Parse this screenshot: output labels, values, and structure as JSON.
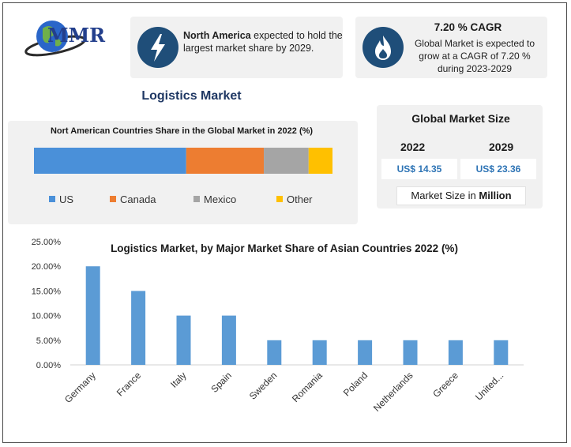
{
  "logo": {
    "text": "MMR"
  },
  "cards": {
    "north_america": {
      "bold": "North America",
      "text": " expected to hold the largest market share by 2029."
    },
    "cagr": {
      "title": "7.20 % CAGR",
      "text": "Global Market is expected to grow at a CAGR of 7.20 % during 2023-2029"
    }
  },
  "main_title": "Logistics Market",
  "global_market": {
    "title": "Global Market Size",
    "year_2022": "2022",
    "year_2029": "2029",
    "value_2022": "US$ 14.35",
    "value_2029": "US$ 23.36",
    "unit_prefix": "Market Size in ",
    "unit_bold": "Million"
  },
  "colors": {
    "accent": "#1f4e79",
    "us": "#4a90d9",
    "canada": "#ed7d31",
    "mexico": "#a5a5a5",
    "other": "#ffc000",
    "bar": "#5b9bd5"
  },
  "chart_data": [
    {
      "type": "bar",
      "orientation": "horizontal-stacked",
      "title": "Nort American Countries Share in the Global Market in 2022 (%)",
      "series": [
        {
          "name": "US",
          "value": 51
        },
        {
          "name": "Canada",
          "value": 26
        },
        {
          "name": "Mexico",
          "value": 15
        },
        {
          "name": "Other",
          "value": 8
        }
      ],
      "legend": "bottom"
    },
    {
      "type": "bar",
      "title": "Logistics Market, by Major Market Share of Asian Countries 2022 (%)",
      "categories": [
        "Germany",
        "France",
        "Italy",
        "Spain",
        "Sweden",
        "Romania",
        "Poland",
        "Netherlands",
        "Greece",
        "United..."
      ],
      "values": [
        20,
        15,
        10,
        10,
        5,
        5,
        5,
        5,
        5,
        5
      ],
      "yticks": [
        "0.00%",
        "5.00%",
        "10.00%",
        "15.00%",
        "20.00%",
        "25.00%"
      ],
      "ylim": [
        0,
        25
      ],
      "grid": false,
      "legend": "none"
    }
  ]
}
